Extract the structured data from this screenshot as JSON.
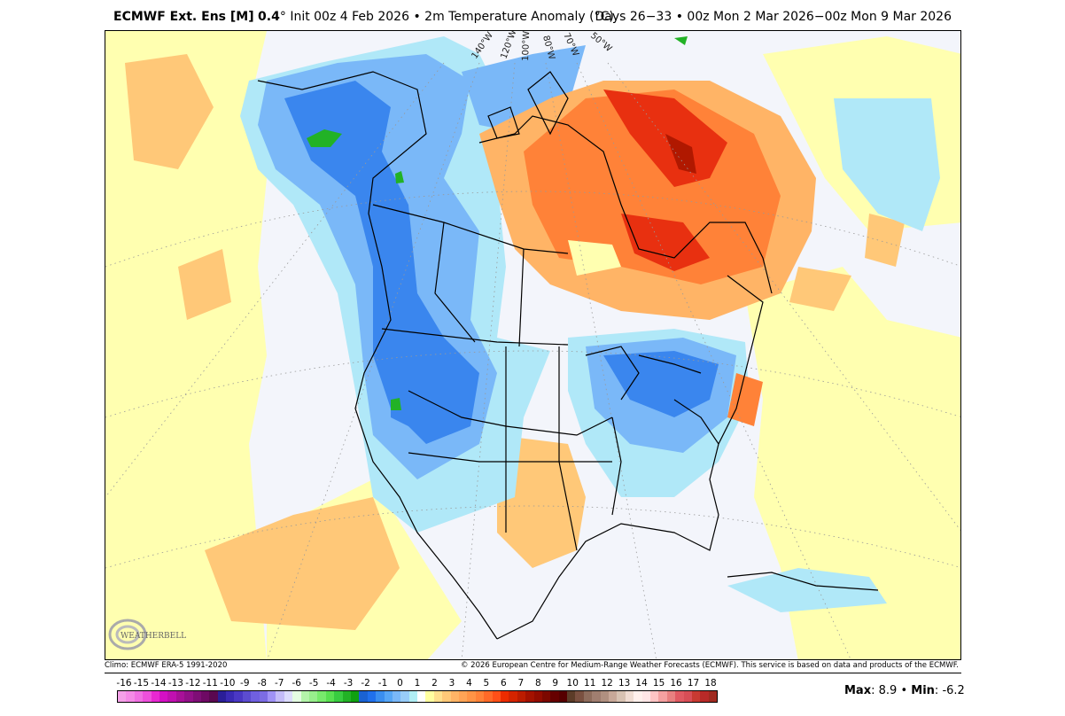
{
  "header": {
    "model": "ECMWF Ext. Ens [M]",
    "resolution": "0.4",
    "degree": "°",
    "init": "Init 00z 4 Feb 2026",
    "sep": "•",
    "variable": "2m Temperature Anomaly (°C)",
    "valid": "Days 26−33 • 00z Mon 2 Mar 2026−00z Mon 9 Mar 2026"
  },
  "map": {
    "longitude_labels": [
      "140°W",
      "120°W",
      "100°W",
      "80°W",
      "70°W",
      "50°W"
    ],
    "logo_text": "WeatherBELL Analytics LLC",
    "colors": {
      "ocean_background": "#f3f5fb",
      "near_zero_warm": "#ffffb0",
      "warm": "#ffb060",
      "hot": "#e83010",
      "hot_core": "#b01800",
      "cool": "#b0e8f8",
      "cold": "#58a8f8",
      "colder": "#2a78e8",
      "coldest": "#20b020"
    }
  },
  "footer": {
    "climo": "Climo: ECMWF ERA-5 1991-2020",
    "copyright": "© 2026 European Centre for Medium-Range Weather Forecasts (ECMWF). This service is based on data and products of the ECMWF."
  },
  "colorbar": {
    "labels": [
      "-16",
      "-15",
      "-14",
      "-13",
      "-12",
      "-11",
      "-10",
      "-9",
      "-8",
      "-7",
      "-6",
      "-5",
      "-4",
      "-3",
      "-2",
      "-1",
      "0",
      "1",
      "2",
      "3",
      "4",
      "5",
      "6",
      "7",
      "8",
      "9",
      "10",
      "11",
      "12",
      "13",
      "14",
      "15",
      "16",
      "17",
      "18"
    ],
    "colors": [
      "#f4a0e8",
      "#f48ae6",
      "#f070e2",
      "#ee50dc",
      "#e828d2",
      "#d410c4",
      "#c010b0",
      "#a81098",
      "#921088",
      "#7e0e76",
      "#6e0a64",
      "#5a0850",
      "#2a1e98",
      "#3a2ab4",
      "#4a38c4",
      "#5c4cd0",
      "#7060e0",
      "#7c6ce4",
      "#a092f6",
      "#c4bcf8",
      "#dcdcfc",
      "#e4fce2",
      "#b4f4aa",
      "#98ee8c",
      "#78ea6c",
      "#58e050",
      "#38cc40",
      "#22b226",
      "#10a010",
      "#1a62d2",
      "#2070ec",
      "#3a8ef0",
      "#56a6f6",
      "#7ab8f8",
      "#98ccf8",
      "#b0eef4",
      "#ffffff",
      "#ffffa0",
      "#ffe08e",
      "#ffc878",
      "#ffb466",
      "#ffa456",
      "#ff9446",
      "#ff8238",
      "#ff6a28",
      "#ff5018",
      "#ec2c00",
      "#d42400",
      "#bc1c00",
      "#a41200",
      "#920c00",
      "#7c0800",
      "#660000",
      "#560000",
      "#5c3c28",
      "#7a5040",
      "#8e6c5c",
      "#a07e70",
      "#b09080",
      "#c8a898",
      "#d8c2b2",
      "#f0dcd2",
      "#fff0ec",
      "#ffe6e6",
      "#ffc4c4",
      "#f4a0a0",
      "#e88080",
      "#e05a62",
      "#d84e56",
      "#c83a32",
      "#b82a28",
      "#a02a20"
    ]
  },
  "stats": {
    "max_label": "Max",
    "max_value": "8.9",
    "min_label": "Min",
    "min_value": "-6.2",
    "sep": "•"
  }
}
